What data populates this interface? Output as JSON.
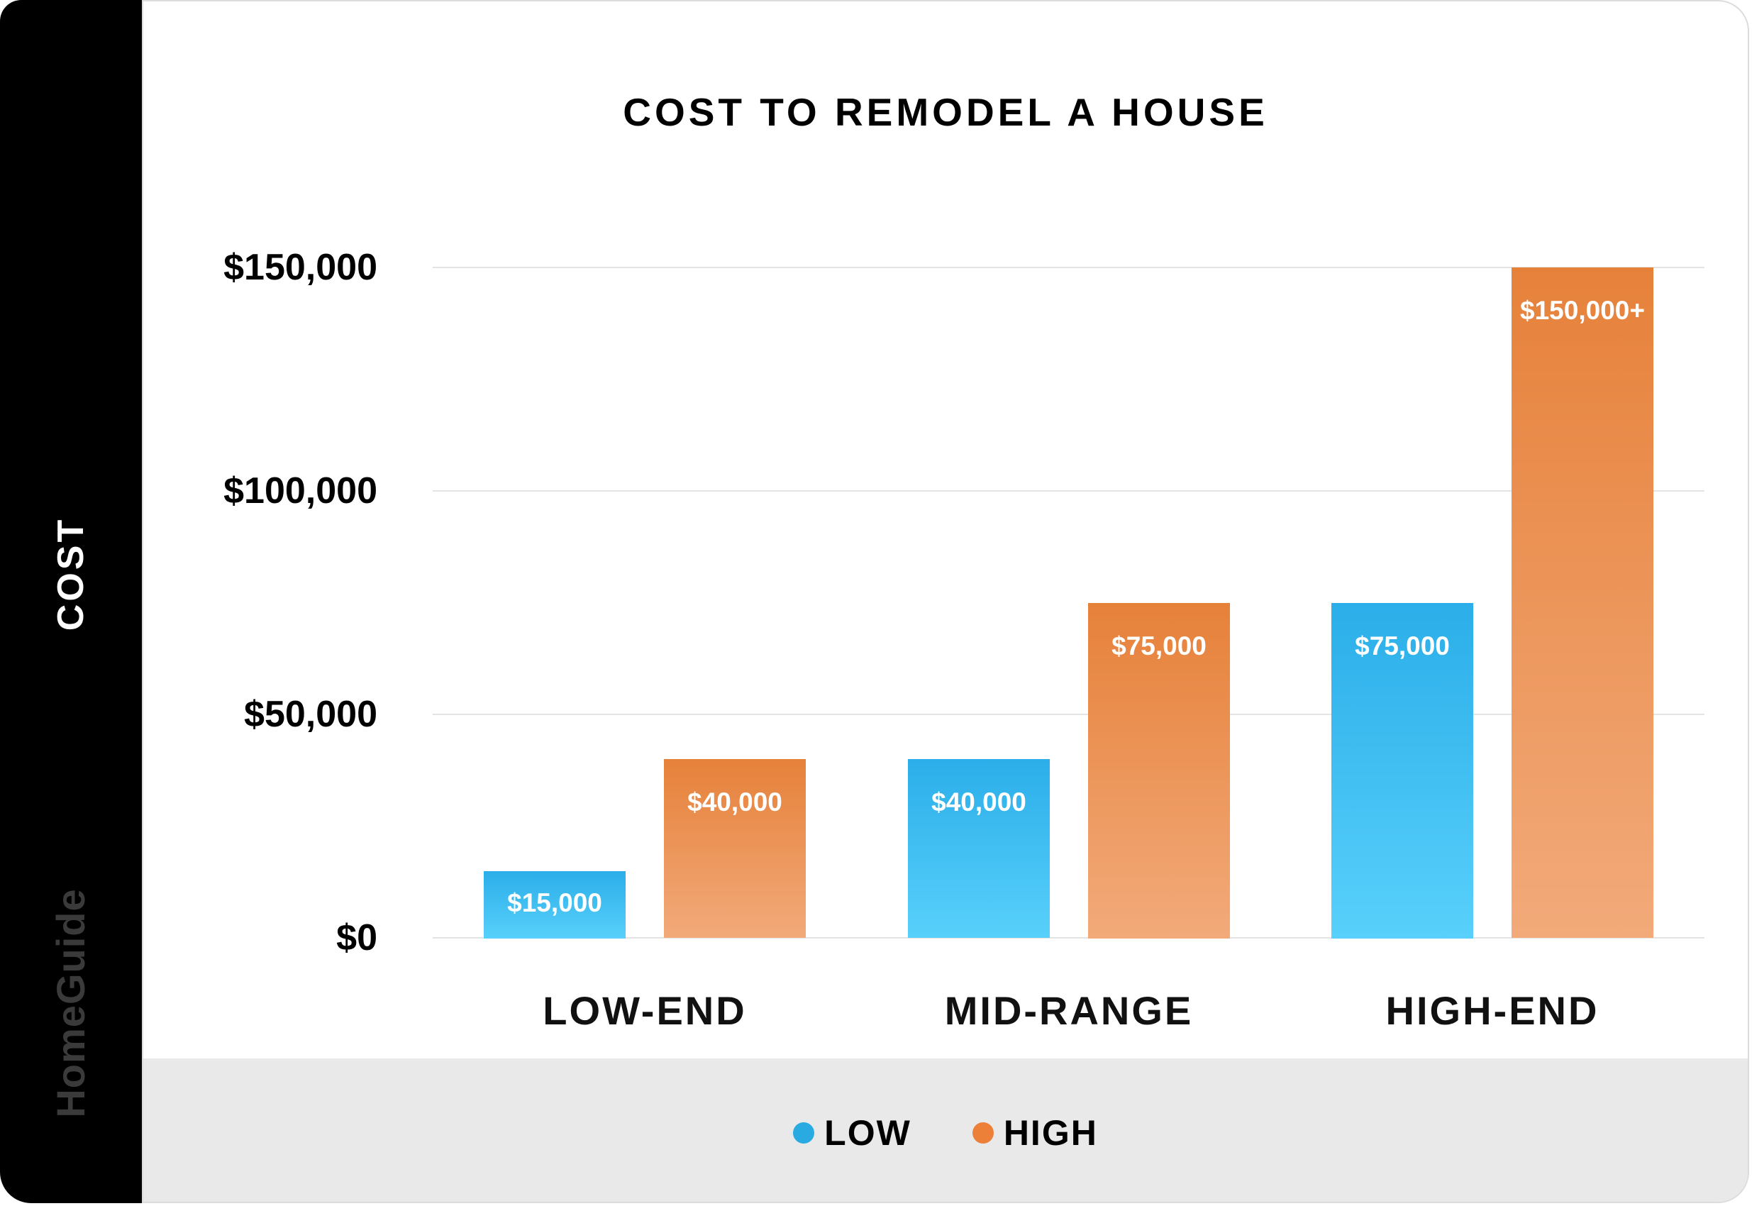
{
  "sidebar": {
    "axis_label": "COST",
    "brand": "HomeGuide"
  },
  "title": "COST TO REMODEL A HOUSE",
  "chart_data": {
    "type": "bar",
    "title": "COST TO REMODEL A HOUSE",
    "categories": [
      "LOW-END",
      "MID-RANGE",
      "HIGH-END"
    ],
    "series": [
      {
        "name": "LOW",
        "values": [
          15000,
          40000,
          75000
        ],
        "data_labels": [
          "$15,000",
          "$40,000",
          "$75,000"
        ]
      },
      {
        "name": "HIGH",
        "values": [
          40000,
          75000,
          150000
        ],
        "data_labels": [
          "$40,000",
          "$75,000",
          "$150,000+"
        ]
      }
    ],
    "ylabel": "COST",
    "xlabel": "",
    "ylim": [
      0,
      150000
    ],
    "yticks": [
      {
        "value": 150000,
        "label": "$150,000"
      },
      {
        "value": 100000,
        "label": "$100,000"
      },
      {
        "value": 50000,
        "label": "$50,000"
      },
      {
        "value": 0,
        "label": "$0"
      }
    ],
    "grid": true,
    "legend_position": "bottom"
  },
  "legend": {
    "items": [
      {
        "label": "LOW",
        "color": "#29abe2"
      },
      {
        "label": "HIGH",
        "color": "#ec8038"
      }
    ]
  },
  "colors": {
    "low_top": "#2baee9",
    "low_bottom": "#58d0fb",
    "high_top": "#e6813a",
    "high_bottom": "#f2aa7a",
    "gridline": "#e4e4e4",
    "footer_bg": "#e9e9e9",
    "sidebar_bg": "#000000",
    "brand_text": "#3a3a3a"
  }
}
